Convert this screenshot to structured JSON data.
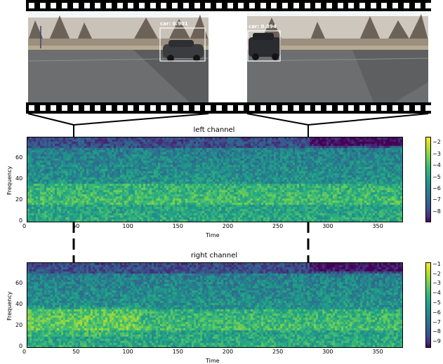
{
  "detections": [
    {
      "label": "car: 0.901"
    },
    {
      "label": "car: 0.894"
    }
  ],
  "spectrograms": [
    {
      "title": "left channel",
      "xlabel": "Time",
      "ylabel": "Frequency",
      "x_ticks": [
        "0",
        "50",
        "100",
        "150",
        "200",
        "250",
        "300",
        "350"
      ],
      "y_ticks": [
        "0",
        "20",
        "40",
        "60"
      ],
      "colorbar_ticks": [
        "-2",
        "-3",
        "-4",
        "-5",
        "-6",
        "-7",
        "-8"
      ]
    },
    {
      "title": "right channel",
      "xlabel": "Time",
      "ylabel": "Frequency",
      "x_ticks": [
        "0",
        "50",
        "100",
        "150",
        "200",
        "250",
        "300",
        "350"
      ],
      "y_ticks": [
        "0",
        "20",
        "40",
        "60"
      ],
      "colorbar_ticks": [
        "-1",
        "-2",
        "-3",
        "-4",
        "-5",
        "-6",
        "-7",
        "-8",
        "-9"
      ]
    }
  ],
  "chart_data": [
    {
      "type": "heatmap",
      "title": "left channel",
      "xlabel": "Time",
      "ylabel": "Frequency",
      "xlim": [
        0,
        375
      ],
      "ylim": [
        0,
        80
      ],
      "colorbar_range": [
        -8.8,
        -1.5
      ],
      "colormap": "viridis",
      "markers_time": [
        48,
        283
      ]
    },
    {
      "type": "heatmap",
      "title": "right channel",
      "xlabel": "Time",
      "ylabel": "Frequency",
      "xlim": [
        0,
        375
      ],
      "ylim": [
        0,
        80
      ],
      "colorbar_range": [
        -9.5,
        -0.8
      ],
      "colormap": "viridis",
      "markers_time": [
        48,
        283
      ]
    }
  ],
  "colors": {
    "film": "#000000",
    "detection_box": "#ffffff",
    "marker_line": "#000000"
  }
}
